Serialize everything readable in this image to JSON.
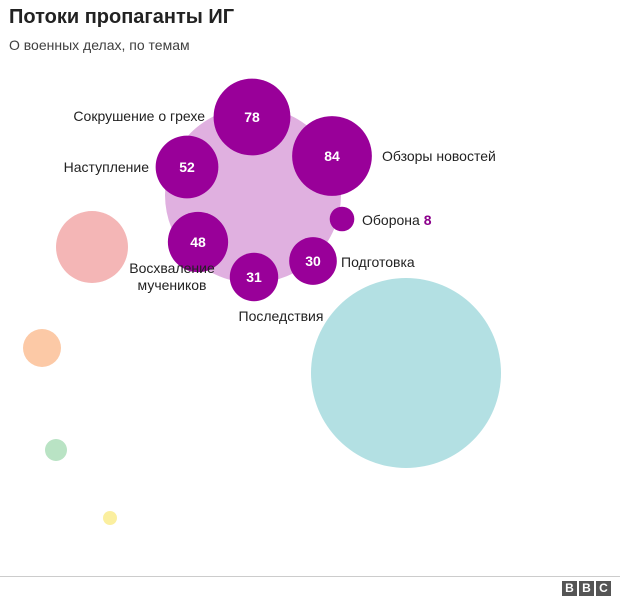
{
  "header": {
    "title": "Потоки пропаганты ИГ",
    "subtitle": "О военных делах, по темам"
  },
  "footer": {
    "logo_letters": [
      "B",
      "B",
      "C"
    ]
  },
  "chart_data": {
    "type": "bubble",
    "title": "Потоки пропаганты ИГ",
    "subtitle": "О военных делах, по темам",
    "cluster_color": "#e0b0e0",
    "bubble_color": "#990099",
    "series": [
      {
        "name": "Сокрушение о грехе",
        "value": 78
      },
      {
        "name": "Обзоры новостей",
        "value": 84
      },
      {
        "name": "Наступление",
        "value": 52
      },
      {
        "name": "Оборона",
        "value": 8
      },
      {
        "name": "Восхваление мучеников",
        "value": 48
      },
      {
        "name": "Подготовка",
        "value": 30
      },
      {
        "name": "Последствия",
        "value": 31
      }
    ],
    "other_categories": [
      {
        "color": "#f4b6b6"
      },
      {
        "color": "#b3e0e3"
      },
      {
        "color": "#fcc9a6"
      },
      {
        "color": "#b9e3c4"
      },
      {
        "color": "#fbef9f"
      }
    ]
  }
}
